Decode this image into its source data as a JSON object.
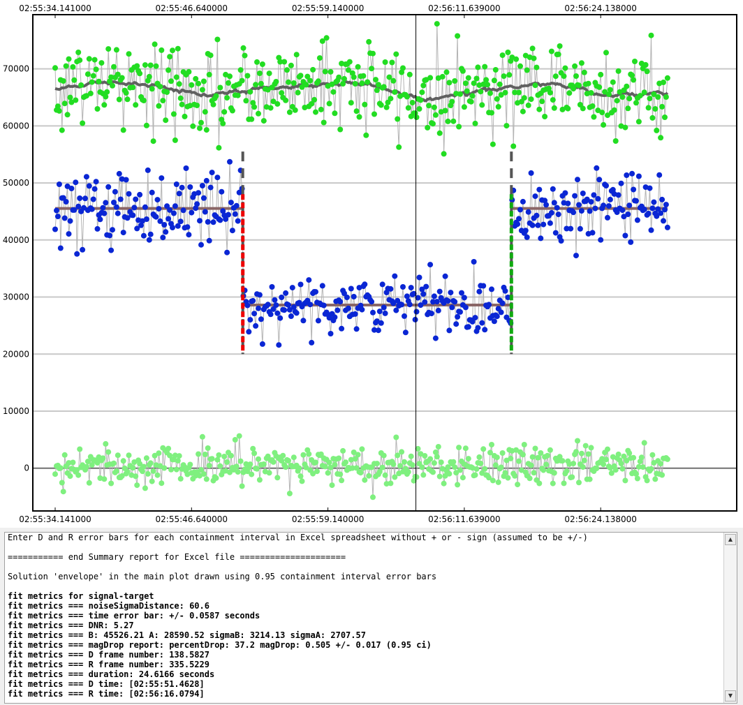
{
  "chart_data": {
    "type": "scatter",
    "title": "",
    "xlabel": "",
    "ylabel": "",
    "x_ticks": [
      "02:55:34.141000",
      "02:55:46.640000",
      "02:55:59.140000",
      "02:56:11.639000",
      "02:56:24.138000"
    ],
    "y_ticks": [
      "0",
      "10000",
      "20000",
      "30000",
      "40000",
      "50000",
      "60000",
      "70000"
    ],
    "ylim": [
      -7500,
      79500
    ],
    "frame_range": [
      1,
      450
    ],
    "frames_per_tick": 100,
    "D_frame": 138.58,
    "R_frame": 335.52,
    "cursor_frame": 265.5,
    "B_level": 45526,
    "A_level": 28590,
    "sigmaB": 3214,
    "sigmaA": 2708,
    "envelope_low": 20000,
    "envelope_high": 55500,
    "series": [
      {
        "role": "comparison",
        "color": "#22dd22",
        "mean": 66500,
        "sigma": 3900,
        "n": 450
      },
      {
        "role": "signal-target",
        "color": "#0a26d4",
        "n": 450
      },
      {
        "role": "difference",
        "color": "#7ff07f",
        "mean": 500,
        "sigma": 1700,
        "n": 450
      }
    ],
    "smooth_color": "#606060",
    "fit_color": "#8a6666",
    "D_color": "#ee0000",
    "R_color": "#11aa11"
  },
  "log": {
    "lines": [
      {
        "text": "Enter D and R error bars for each containment interval in Excel spreadsheet without + or - sign (assumed to be +/-)",
        "bold": false
      },
      {
        "text": "",
        "bold": false
      },
      {
        "text": "=========== end Summary report for Excel file =====================",
        "bold": false
      },
      {
        "text": "",
        "bold": false
      },
      {
        "text": "Solution 'envelope' in the main plot drawn using 0.95 containment interval error bars",
        "bold": false
      },
      {
        "text": "",
        "bold": false
      },
      {
        "text": "fit metrics for signal-target",
        "bold": true
      },
      {
        "text": "fit metrics === noiseSigmaDistance: 60.6",
        "bold": true
      },
      {
        "text": "fit metrics === time error bar: +/- 0.0587 seconds",
        "bold": true
      },
      {
        "text": "fit metrics === DNR: 5.27",
        "bold": true
      },
      {
        "text": "fit metrics === B: 45526.21 A: 28590.52 sigmaB: 3214.13 sigmaA: 2707.57",
        "bold": true
      },
      {
        "text": "fit metrics === magDrop report: percentDrop: 37.2 magDrop: 0.505 +/- 0.017 (0.95 ci)",
        "bold": true
      },
      {
        "text": "fit metrics === D frame number: 138.5827",
        "bold": true
      },
      {
        "text": "fit metrics === R frame number: 335.5229",
        "bold": true
      },
      {
        "text": "fit metrics === duration: 24.6166 seconds",
        "bold": true
      },
      {
        "text": "fit metrics === D time: [02:55:51.4628]",
        "bold": true
      },
      {
        "text": "fit metrics === R time: [02:56:16.0794]",
        "bold": true
      }
    ],
    "scroll_up_icon": "triangle-up",
    "scroll_down_icon": "triangle-down"
  }
}
